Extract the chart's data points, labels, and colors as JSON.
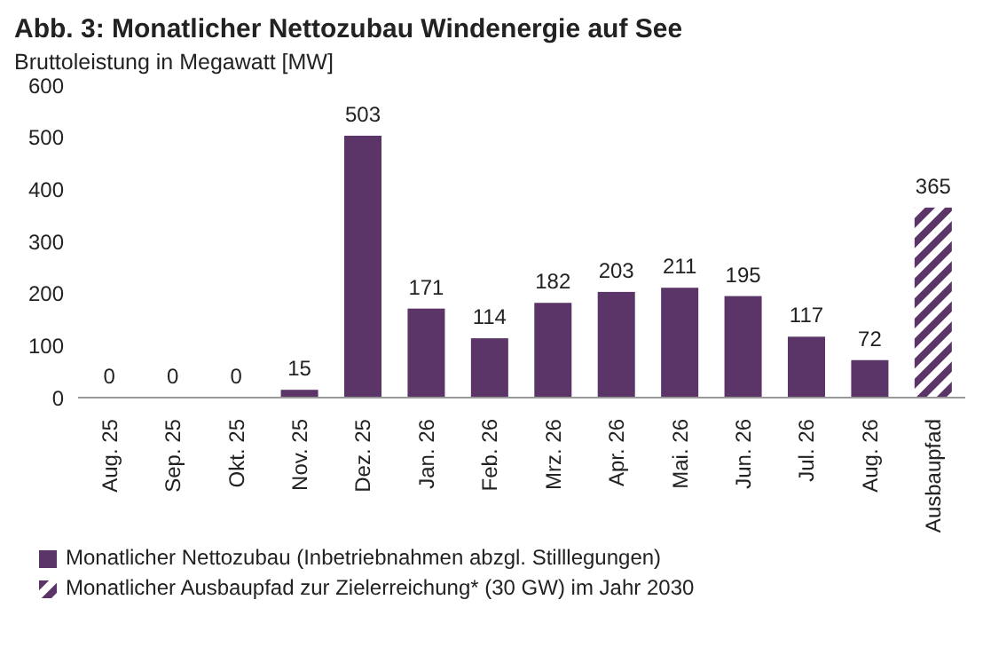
{
  "chart_data": {
    "type": "bar",
    "title": "Abb. 3: Monatlicher Nettozubau Windenergie auf See",
    "subtitle": "Bruttoleistung in Megawatt [MW]",
    "categories": [
      "Aug. 25",
      "Sep. 25",
      "Okt. 25",
      "Nov. 25",
      "Dez. 25",
      "Jan. 26",
      "Feb. 26",
      "Mrz. 26",
      "Apr. 26",
      "Mai. 26",
      "Jun. 26",
      "Jul. 26",
      "Aug. 26",
      "Ausbaupfad"
    ],
    "series": [
      {
        "name": "Monatlicher Nettozubau (Inbetriebnahmen abzgl. Stilllegungen)",
        "color": "#5b3568",
        "values": [
          0,
          0,
          0,
          15,
          503,
          171,
          114,
          182,
          203,
          211,
          195,
          117,
          72,
          null
        ]
      },
      {
        "name": "Monatlicher Ausbaupfad zur Zielerreichung* (30 GW) im Jahr 2030",
        "color": "#5b3568",
        "values": [
          null,
          null,
          null,
          null,
          null,
          null,
          null,
          null,
          null,
          null,
          null,
          null,
          null,
          365
        ]
      }
    ],
    "ylim": [
      0,
      600
    ],
    "yticks": [
      0,
      100,
      200,
      300,
      400,
      500,
      600
    ],
    "grid": false,
    "legend": "bottom",
    "data_labels": true
  }
}
